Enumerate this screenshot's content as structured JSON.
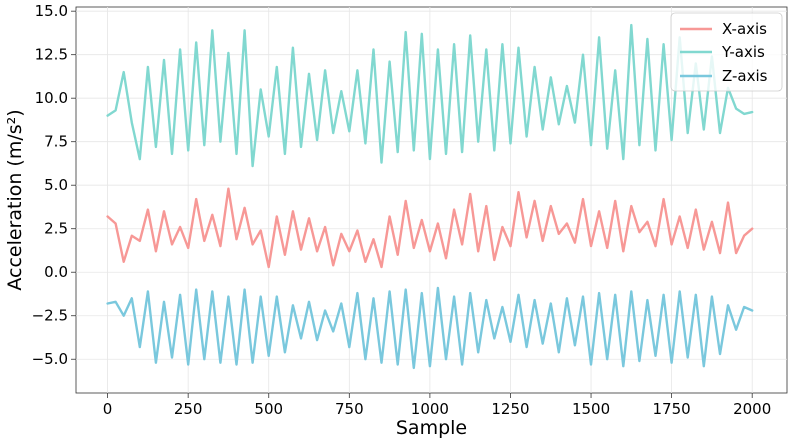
{
  "chart_data": {
    "type": "line",
    "title": "",
    "xlabel": "Sample",
    "ylabel": "Acceleration (m/s²)",
    "xlim": [
      -98,
      2108
    ],
    "ylim": [
      -6.94,
      15.24
    ],
    "grid": true,
    "legend_position": "top-right",
    "x_ticks": [
      0,
      250,
      500,
      750,
      1000,
      1250,
      1500,
      1750,
      2000
    ],
    "x_tick_labels": [
      "0",
      "250",
      "500",
      "750",
      "1000",
      "1250",
      "1500",
      "1750",
      "2000"
    ],
    "y_ticks": [
      -5.0,
      -2.5,
      0.0,
      2.5,
      5.0,
      7.5,
      10.0,
      12.5,
      15.0
    ],
    "y_tick_labels": [
      "−5.0",
      "−2.5",
      "0.0",
      "2.5",
      "5.0",
      "7.5",
      "10.0",
      "12.5",
      "15.0"
    ],
    "x": [
      0,
      25,
      50,
      75,
      100,
      125,
      150,
      175,
      200,
      225,
      250,
      275,
      300,
      325,
      350,
      375,
      400,
      425,
      450,
      475,
      500,
      525,
      550,
      575,
      600,
      625,
      650,
      675,
      700,
      725,
      750,
      775,
      800,
      825,
      850,
      875,
      900,
      925,
      950,
      975,
      1000,
      1025,
      1050,
      1075,
      1100,
      1125,
      1150,
      1175,
      1200,
      1225,
      1250,
      1275,
      1300,
      1325,
      1350,
      1375,
      1400,
      1425,
      1450,
      1475,
      1500,
      1525,
      1550,
      1575,
      1600,
      1625,
      1650,
      1675,
      1700,
      1725,
      1750,
      1775,
      1800,
      1825,
      1850,
      1875,
      1900,
      1925,
      1950,
      1975,
      2000
    ],
    "series": [
      {
        "name": "X-axis",
        "color": "#f79896",
        "values": [
          3.2,
          2.8,
          0.6,
          2.1,
          1.8,
          3.6,
          1.2,
          3.5,
          1.6,
          2.6,
          1.4,
          4.2,
          1.8,
          3.3,
          1.5,
          4.8,
          1.9,
          3.7,
          1.6,
          2.4,
          0.3,
          3.2,
          1.0,
          3.5,
          1.3,
          3.1,
          1.2,
          2.6,
          0.4,
          2.2,
          1.2,
          2.4,
          0.6,
          1.9,
          0.3,
          3.2,
          1.0,
          4.1,
          1.4,
          3.0,
          1.2,
          2.8,
          0.8,
          3.6,
          1.6,
          4.5,
          1.2,
          3.8,
          0.7,
          2.6,
          1.5,
          4.6,
          2.0,
          4.1,
          1.8,
          3.8,
          2.2,
          2.8,
          1.7,
          4.2,
          1.5,
          3.5,
          1.4,
          4.1,
          1.2,
          3.8,
          2.3,
          2.9,
          1.5,
          4.2,
          1.6,
          3.2,
          1.4,
          3.6,
          1.3,
          2.9,
          1.1,
          4.0,
          1.1,
          2.1,
          2.5
        ],
        "labels": []
      },
      {
        "name": "Y-axis",
        "color": "#81d8d0",
        "values": [
          9.0,
          9.3,
          11.5,
          8.6,
          6.5,
          11.8,
          7.2,
          12.2,
          6.8,
          12.8,
          7.0,
          13.2,
          7.3,
          13.9,
          7.5,
          12.6,
          6.8,
          13.9,
          6.1,
          10.5,
          7.8,
          11.8,
          6.8,
          12.9,
          7.2,
          11.4,
          7.6,
          11.6,
          8.0,
          10.4,
          8.1,
          11.6,
          7.4,
          12.8,
          6.3,
          12.1,
          6.9,
          13.8,
          7.0,
          13.7,
          6.5,
          12.8,
          6.8,
          13.1,
          6.9,
          13.6,
          7.5,
          12.8,
          7.0,
          13.1,
          7.4,
          12.9,
          7.8,
          11.8,
          8.2,
          11.2,
          8.5,
          10.7,
          8.6,
          12.5,
          7.3,
          13.5,
          7.1,
          11.6,
          6.5,
          14.2,
          7.3,
          13.4,
          7.0,
          13.1,
          7.6,
          13.5,
          8.0,
          12.0,
          8.2,
          12.4,
          8.0,
          10.6,
          9.4,
          9.1,
          9.2
        ],
        "labels": []
      },
      {
        "name": "Z-axis",
        "color": "#7ac8dd",
        "values": [
          -1.8,
          -1.7,
          -2.5,
          -1.5,
          -4.3,
          -1.1,
          -5.2,
          -1.7,
          -4.9,
          -1.3,
          -5.3,
          -1.0,
          -5.0,
          -1.1,
          -5.2,
          -1.4,
          -5.3,
          -1.0,
          -5.2,
          -1.4,
          -4.8,
          -1.4,
          -4.6,
          -1.9,
          -3.8,
          -1.7,
          -3.9,
          -2.2,
          -3.4,
          -1.8,
          -4.3,
          -1.2,
          -5.0,
          -1.5,
          -5.2,
          -1.1,
          -5.3,
          -1.0,
          -5.5,
          -1.2,
          -5.4,
          -0.9,
          -5.0,
          -1.4,
          -5.3,
          -1.2,
          -4.6,
          -1.6,
          -3.8,
          -2.0,
          -4.0,
          -1.3,
          -4.3,
          -1.6,
          -4.1,
          -1.8,
          -4.6,
          -1.5,
          -4.2,
          -1.4,
          -5.3,
          -1.2,
          -5.0,
          -1.3,
          -5.4,
          -1.1,
          -5.1,
          -1.6,
          -4.8,
          -1.3,
          -5.2,
          -1.1,
          -4.9,
          -1.3,
          -5.4,
          -1.4,
          -4.7,
          -1.9,
          -3.3,
          -2.0,
          -2.2
        ],
        "labels": []
      }
    ]
  }
}
